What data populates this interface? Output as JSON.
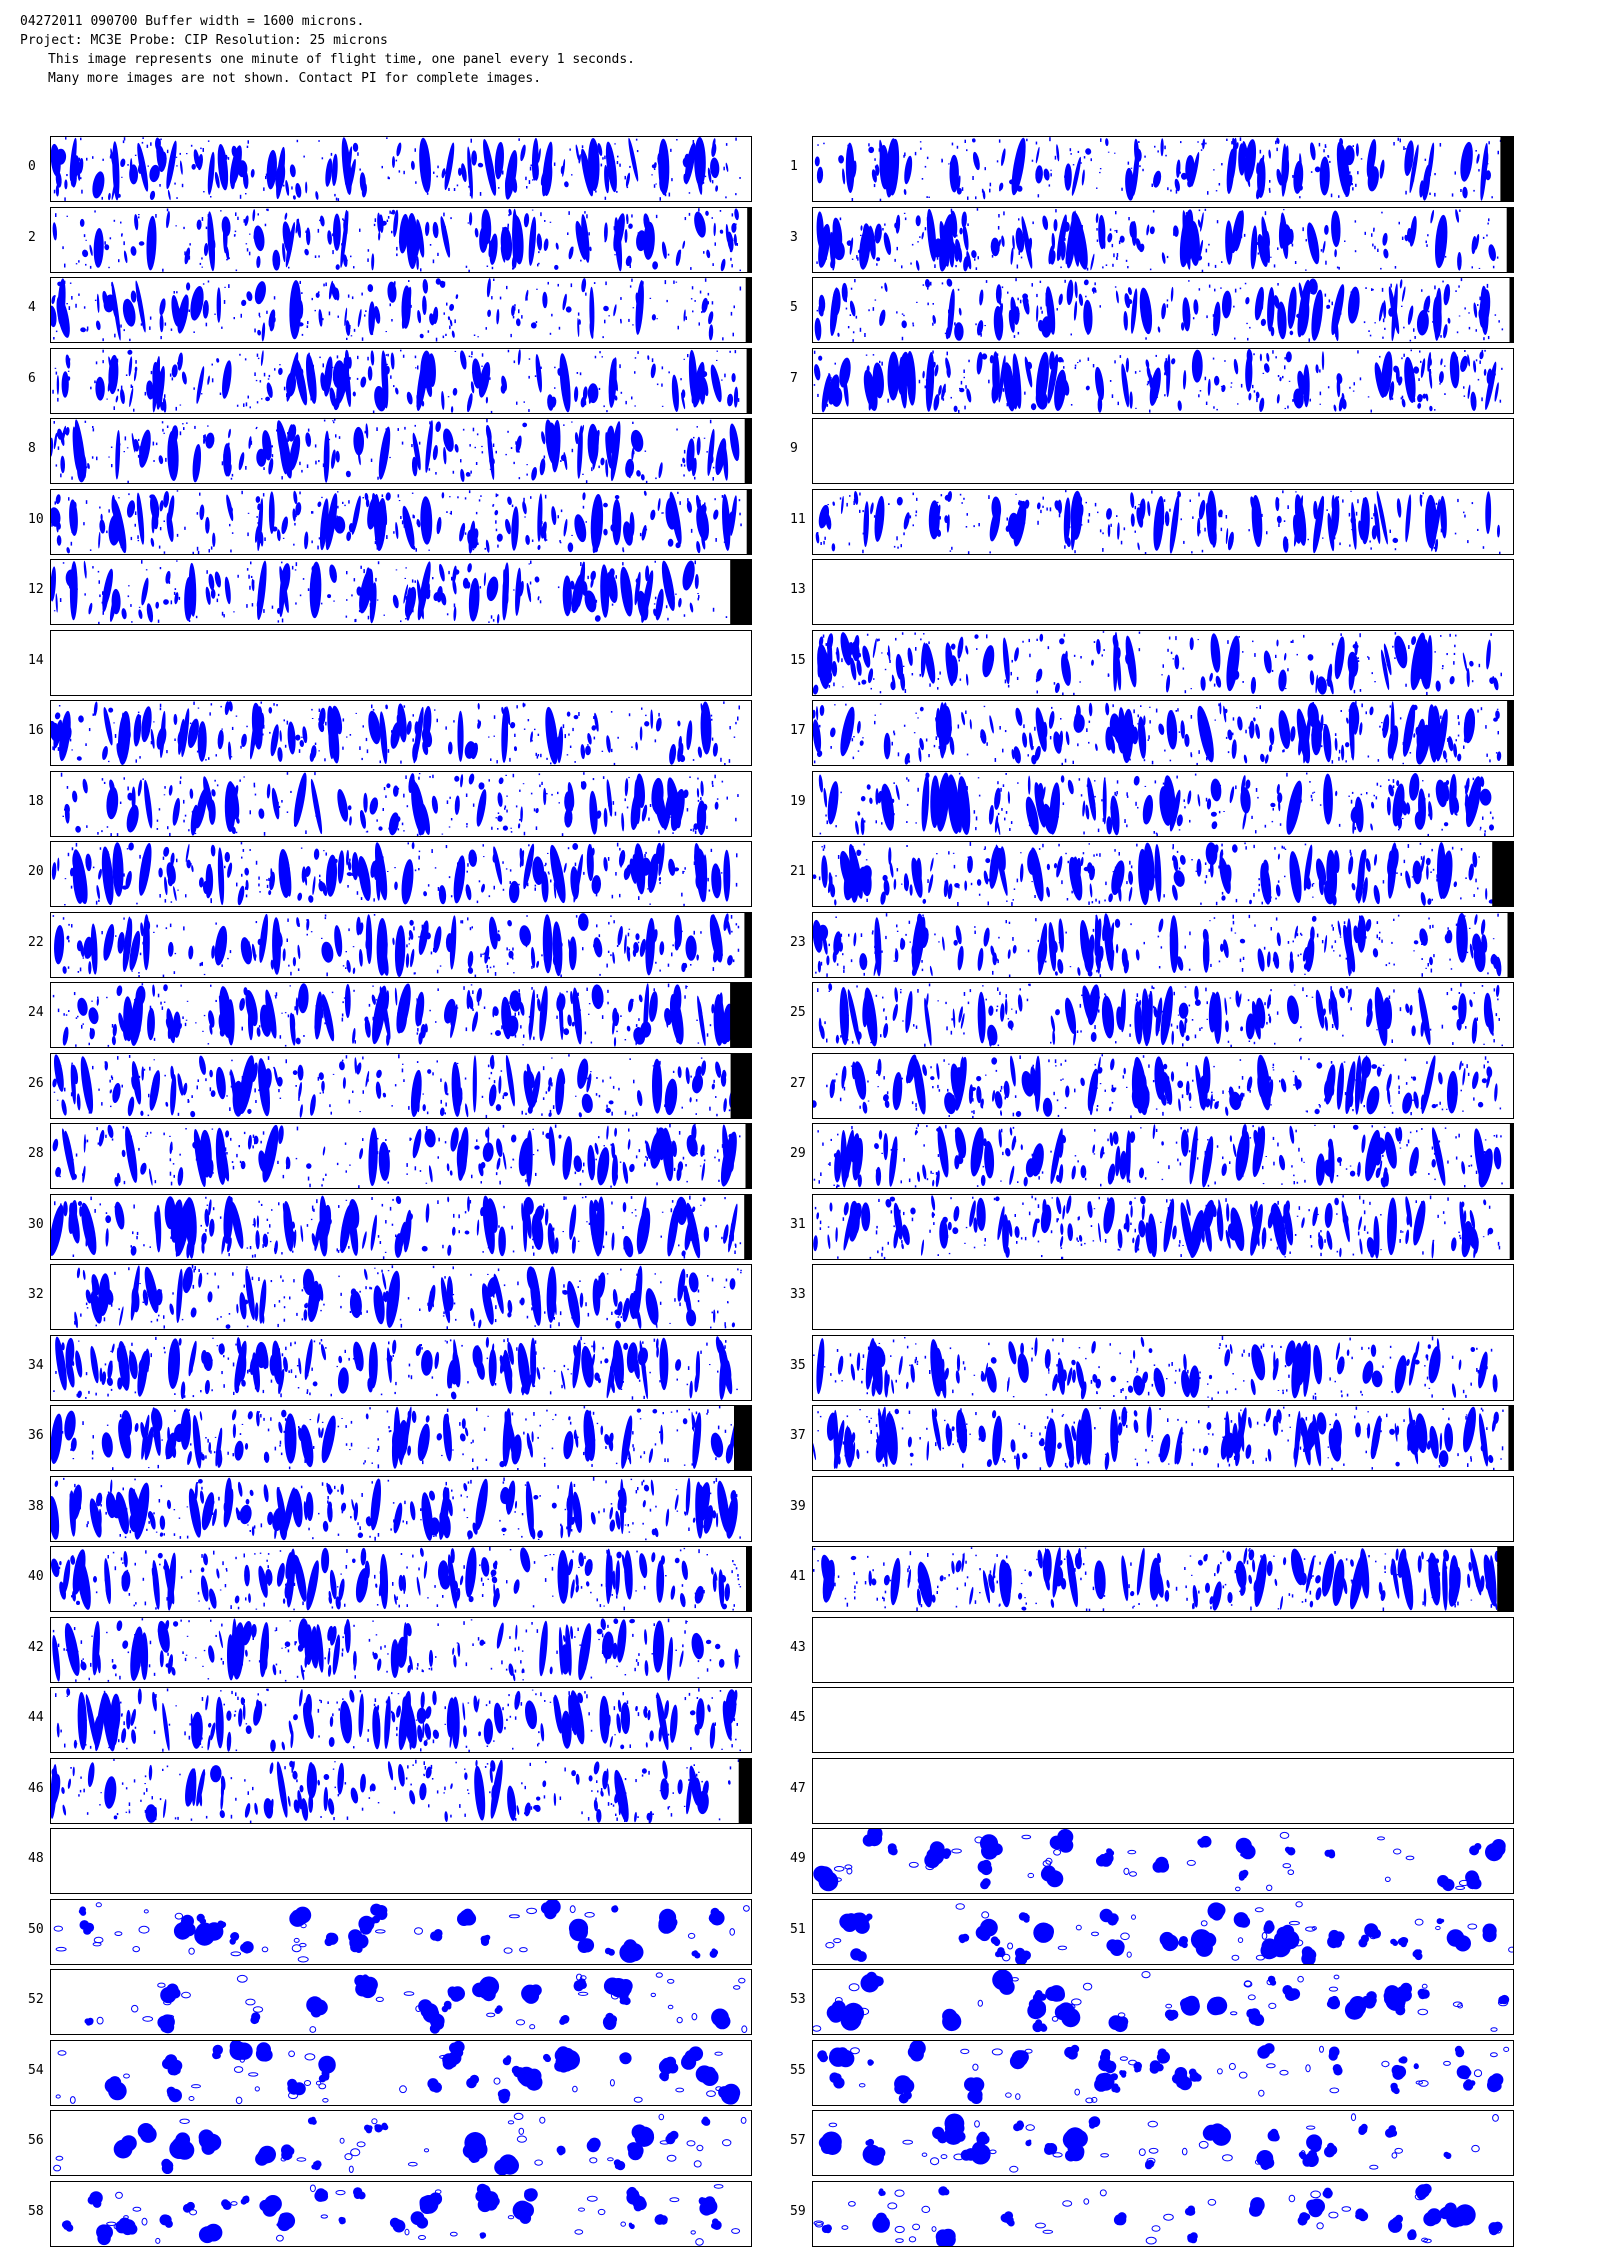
{
  "header": {
    "line1": "04272011 090700  Buffer width = 1600 microns.",
    "line2": "Project: MC3E  Probe: CIP    Resolution: 25 microns",
    "line3": "This image represents one minute of flight time, one panel every 1 seconds.",
    "line4": "Many more images are not shown.  Contact PI for complete images."
  },
  "colors": {
    "particle": "#0000ff",
    "buffer_end": "#000000",
    "frame": "#000000"
  },
  "panels": [
    {
      "label": "0",
      "empty": false,
      "kind": "columnar"
    },
    {
      "label": "1",
      "empty": false,
      "kind": "columnar"
    },
    {
      "label": "2",
      "empty": false,
      "kind": "columnar"
    },
    {
      "label": "3",
      "empty": false,
      "kind": "columnar"
    },
    {
      "label": "4",
      "empty": false,
      "kind": "columnar"
    },
    {
      "label": "5",
      "empty": false,
      "kind": "columnar"
    },
    {
      "label": "6",
      "empty": false,
      "kind": "columnar"
    },
    {
      "label": "7",
      "empty": false,
      "kind": "columnar"
    },
    {
      "label": "8",
      "empty": false,
      "kind": "columnar"
    },
    {
      "label": "9",
      "empty": true,
      "kind": "none"
    },
    {
      "label": "10",
      "empty": false,
      "kind": "columnar"
    },
    {
      "label": "11",
      "empty": false,
      "kind": "columnar"
    },
    {
      "label": "12",
      "empty": false,
      "kind": "columnar"
    },
    {
      "label": "13",
      "empty": true,
      "kind": "none"
    },
    {
      "label": "14",
      "empty": true,
      "kind": "none"
    },
    {
      "label": "15",
      "empty": false,
      "kind": "columnar"
    },
    {
      "label": "16",
      "empty": false,
      "kind": "columnar"
    },
    {
      "label": "17",
      "empty": false,
      "kind": "columnar"
    },
    {
      "label": "18",
      "empty": false,
      "kind": "columnar"
    },
    {
      "label": "19",
      "empty": false,
      "kind": "columnar"
    },
    {
      "label": "20",
      "empty": false,
      "kind": "columnar"
    },
    {
      "label": "21",
      "empty": false,
      "kind": "columnar"
    },
    {
      "label": "22",
      "empty": false,
      "kind": "columnar"
    },
    {
      "label": "23",
      "empty": false,
      "kind": "columnar"
    },
    {
      "label": "24",
      "empty": false,
      "kind": "columnar"
    },
    {
      "label": "25",
      "empty": false,
      "kind": "columnar"
    },
    {
      "label": "26",
      "empty": false,
      "kind": "columnar"
    },
    {
      "label": "27",
      "empty": false,
      "kind": "columnar"
    },
    {
      "label": "28",
      "empty": false,
      "kind": "columnar"
    },
    {
      "label": "29",
      "empty": false,
      "kind": "columnar"
    },
    {
      "label": "30",
      "empty": false,
      "kind": "columnar"
    },
    {
      "label": "31",
      "empty": false,
      "kind": "columnar"
    },
    {
      "label": "32",
      "empty": false,
      "kind": "columnar"
    },
    {
      "label": "33",
      "empty": true,
      "kind": "none"
    },
    {
      "label": "34",
      "empty": false,
      "kind": "columnar"
    },
    {
      "label": "35",
      "empty": false,
      "kind": "columnar"
    },
    {
      "label": "36",
      "empty": false,
      "kind": "columnar"
    },
    {
      "label": "37",
      "empty": false,
      "kind": "columnar"
    },
    {
      "label": "38",
      "empty": false,
      "kind": "columnar"
    },
    {
      "label": "39",
      "empty": true,
      "kind": "none"
    },
    {
      "label": "40",
      "empty": false,
      "kind": "columnar"
    },
    {
      "label": "41",
      "empty": false,
      "kind": "columnar"
    },
    {
      "label": "42",
      "empty": false,
      "kind": "columnar"
    },
    {
      "label": "43",
      "empty": true,
      "kind": "none"
    },
    {
      "label": "44",
      "empty": false,
      "kind": "columnar"
    },
    {
      "label": "45",
      "empty": true,
      "kind": "none"
    },
    {
      "label": "46",
      "empty": false,
      "kind": "columnar"
    },
    {
      "label": "47",
      "empty": true,
      "kind": "none"
    },
    {
      "label": "48",
      "empty": true,
      "kind": "none"
    },
    {
      "label": "49",
      "empty": false,
      "kind": "aggregate"
    },
    {
      "label": "50",
      "empty": false,
      "kind": "aggregate"
    },
    {
      "label": "51",
      "empty": false,
      "kind": "aggregate"
    },
    {
      "label": "52",
      "empty": false,
      "kind": "aggregate"
    },
    {
      "label": "53",
      "empty": false,
      "kind": "aggregate"
    },
    {
      "label": "54",
      "empty": false,
      "kind": "aggregate"
    },
    {
      "label": "55",
      "empty": false,
      "kind": "aggregate"
    },
    {
      "label": "56",
      "empty": false,
      "kind": "aggregate"
    },
    {
      "label": "57",
      "empty": false,
      "kind": "aggregate"
    },
    {
      "label": "58",
      "empty": false,
      "kind": "aggregate"
    },
    {
      "label": "59",
      "empty": false,
      "kind": "aggregate"
    }
  ]
}
